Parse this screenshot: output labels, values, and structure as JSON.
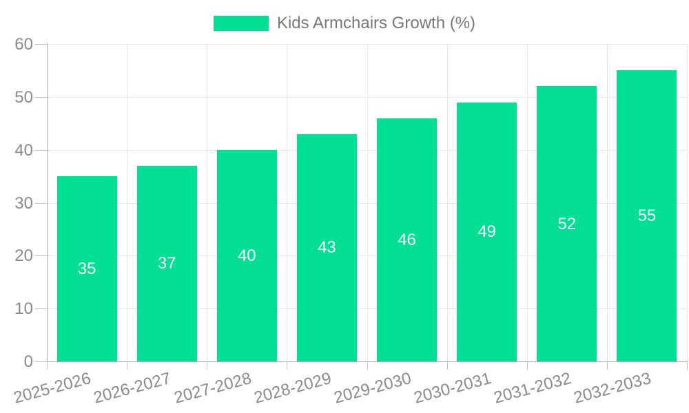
{
  "chart_data": {
    "type": "bar",
    "title": "",
    "legend": {
      "label": "Kids Armchairs Growth (%)",
      "position": "top-center"
    },
    "categories": [
      "2025-2026",
      "2026-2027",
      "2027-2028",
      "2028-2029",
      "2029-2030",
      "2030-2031",
      "2031-2032",
      "2032-2033"
    ],
    "values": [
      35,
      37,
      40,
      43,
      46,
      49,
      52,
      55
    ],
    "value_labels": [
      "35",
      "37",
      "40",
      "43",
      "46",
      "49",
      "52",
      "55"
    ],
    "xlabel": "",
    "ylabel": "",
    "ylim": [
      0,
      60
    ],
    "yticks": [
      0,
      10,
      20,
      30,
      40,
      50,
      60
    ],
    "grid": true,
    "x_label_rotation_deg": -15,
    "colors": {
      "bar": "#00DF94",
      "value_label": "#ffffff",
      "grid": "#e8e8e8",
      "axis_line": "#b0b0b0",
      "tick": "#c6c6c6",
      "tick_label": "#8a8a8a",
      "legend_label": "#777777",
      "background": "#ffffff"
    }
  }
}
